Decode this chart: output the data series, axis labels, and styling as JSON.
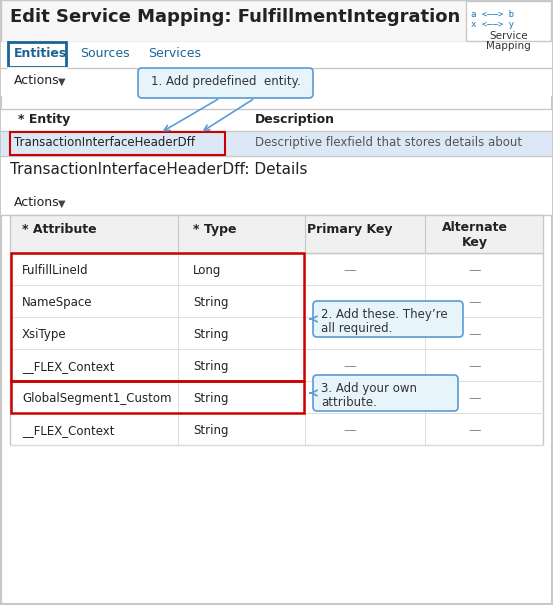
{
  "title": "Edit Service Mapping: FulfillmentIntegration",
  "tabs": [
    "Entities",
    "Sources",
    "Services"
  ],
  "callout1": "1. Add predefined  entity.",
  "callout2": "2. Add these. They’re\nall required.",
  "callout3": "3. Add your own\nattribute.",
  "entity_row": "TransactionInterfaceHeaderDff",
  "entity_desc": "Descriptive flexfield that stores details about",
  "section_title": "TransactionInterfaceHeaderDff: Details",
  "attr_col": "* Attribute",
  "type_col": "* Type",
  "pk_col": "Primary Key",
  "ak_col": "Alternate\nKey",
  "rows": [
    {
      "attr": "FulfillLineId",
      "type": "Long",
      "pk": "—",
      "ak": "—",
      "group": 1
    },
    {
      "attr": "NameSpace",
      "type": "String",
      "pk": "",
      "ak": "—",
      "group": 1
    },
    {
      "attr": "XsiType",
      "type": "String",
      "pk": "",
      "ak": "—",
      "group": 1
    },
    {
      "attr": "__FLEX_Context",
      "type": "String",
      "pk": "—",
      "ak": "—",
      "group": 1
    },
    {
      "attr": "GlobalSegment1_Custom",
      "type": "String",
      "pk": "",
      "ak": "—",
      "group": 2
    },
    {
      "attr": "__FLEX_Context",
      "type": "String",
      "pk": "—",
      "ak": "—",
      "group": 0
    }
  ],
  "bg": "#ffffff",
  "border": "#c8c8c8",
  "red": "#cc0000",
  "blue_fill": "#e8f4fc",
  "blue_border": "#5b9bd5",
  "sel_row": "#dce8f5",
  "tbl_hdr": "#f0f0f0",
  "tab_blue": "#1a6496",
  "dash": "#888888",
  "icon_blue": "#1575bb"
}
